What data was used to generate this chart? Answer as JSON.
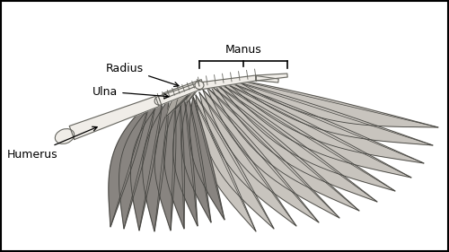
{
  "background_color": "#ffffff",
  "border_color": "#000000",
  "figsize": [
    5.0,
    2.81
  ],
  "dpi": 100,
  "colors": {
    "primary": "#c8c4be",
    "secondary": "#888480",
    "medium": "#aaa69f",
    "outline": "#444440",
    "bone_fill": "#f0ede8",
    "bone_edge": "#666660",
    "white": "#ffffff"
  },
  "labels": {
    "Manus": {
      "fontsize": 9
    },
    "Radius": {
      "fontsize": 9
    },
    "Ulna": {
      "fontsize": 9
    },
    "Humerus": {
      "fontsize": 9
    }
  }
}
